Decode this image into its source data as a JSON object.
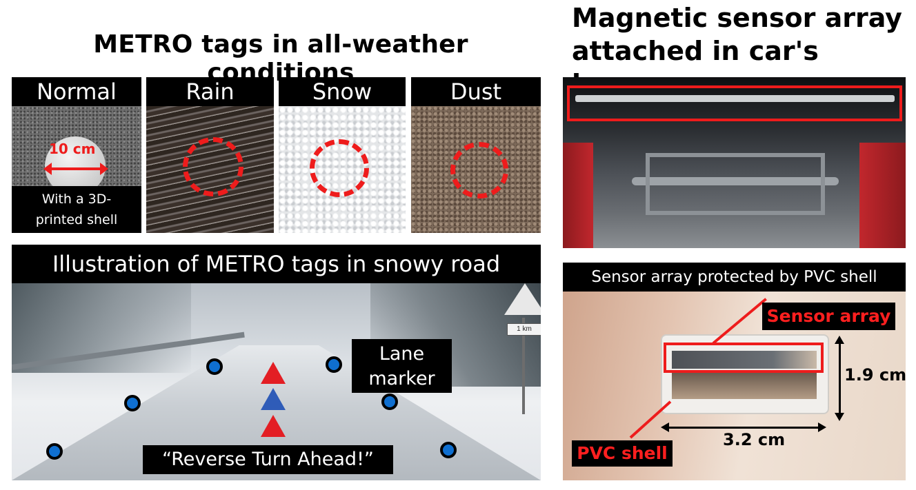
{
  "left": {
    "title": "METRO tags in all-weather conditions",
    "conditions": [
      {
        "label": "Normal"
      },
      {
        "label": "Rain"
      },
      {
        "label": "Snow"
      },
      {
        "label": "Dust"
      }
    ],
    "normal_measure": "10 cm",
    "normal_caption": "With a 3D-printed shell",
    "illustration_title": "Illustration of METRO tags in snowy road",
    "lane_marker_label": "Lane\nmarker",
    "road_sign_text": "1 km",
    "message": "“Reverse Turn Ahead!”"
  },
  "right": {
    "title_line1": "Magnetic sensor array",
    "title_line2": "attached in car's bumper",
    "shell_caption": "Sensor array protected by PVC shell",
    "sensor_label": "Sensor array",
    "pvc_label": "PVC shell",
    "height_measure": "1.9 cm",
    "width_measure": "3.2 cm"
  },
  "colors": {
    "highlight_red": "#ee1c1c",
    "tag_blue": "#0f6fd0",
    "triangle_red": "#e31e24",
    "triangle_blue": "#2f5cb8"
  }
}
